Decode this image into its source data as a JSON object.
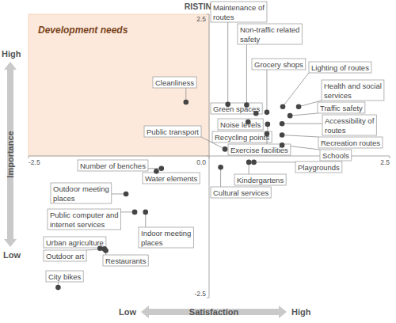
{
  "chart_data": {
    "type": "scatter",
    "title": "RISTINUMMI",
    "x_label": "Satisfaction",
    "y_label": "Importance",
    "x_axis_ends": [
      "Low",
      "High"
    ],
    "y_axis_ends": [
      "Low",
      "High"
    ],
    "region": {
      "label": "Development needs",
      "x": [
        -2.5,
        0
      ],
      "y": [
        0,
        2.5
      ],
      "color": "#fce9dc"
    },
    "labels": [
      "Cleanliness",
      "Maintenance of routes",
      "Non-traffic related safety",
      "Grocery shops",
      "Lighting of routes",
      "Health and social services",
      "Traffic safety",
      "Green spaces",
      "Accessibility of routes",
      "Noise levels",
      "Recycling points",
      "Recreation routes",
      "Schools",
      "Playgrounds",
      "Kindergartens",
      "Exercise facilities",
      "Public transport",
      "Number of benches",
      "Water elements",
      "Cultural services",
      "Outdoor meeting places",
      "Public computer and internet services",
      "Indoor meeting places",
      "Urban agriculture",
      "Outdoor art",
      "Restaurants",
      "City bikes"
    ],
    "x": [
      -0.32,
      0.26,
      0.52,
      0.8,
      1.02,
      1.24,
      1.12,
      0.65,
      1.01,
      0.54,
      0.81,
      1.01,
      1.01,
      0.62,
      0.55,
      0.8,
      0.22,
      -0.66,
      -0.73,
      0.16,
      -1.15,
      -1.03,
      -0.88,
      -1.51,
      -1.45,
      -1.43,
      -2.09
    ],
    "values": [
      0.95,
      0.91,
      0.9,
      0.77,
      0.87,
      0.87,
      0.71,
      0.75,
      0.57,
      0.6,
      0.56,
      0.37,
      0.19,
      -0.11,
      -0.11,
      0.39,
      0.12,
      -0.22,
      -0.27,
      -0.2,
      -0.67,
      -0.99,
      -0.99,
      -1.63,
      -1.64,
      -1.67,
      -2.32
    ],
    "color": "#454545",
    "marker": "circle",
    "xlim": [
      -2.5,
      2.5
    ],
    "ylim": [
      -2.5,
      2.5
    ],
    "xticks": [
      -2.5,
      {
        "value": 0,
        "label": "0.0"
      },
      2.5
    ],
    "yticks": [
      -2.5,
      {
        "value": 0,
        "label": "0.0"
      },
      2.5
    ],
    "grid": false
  }
}
